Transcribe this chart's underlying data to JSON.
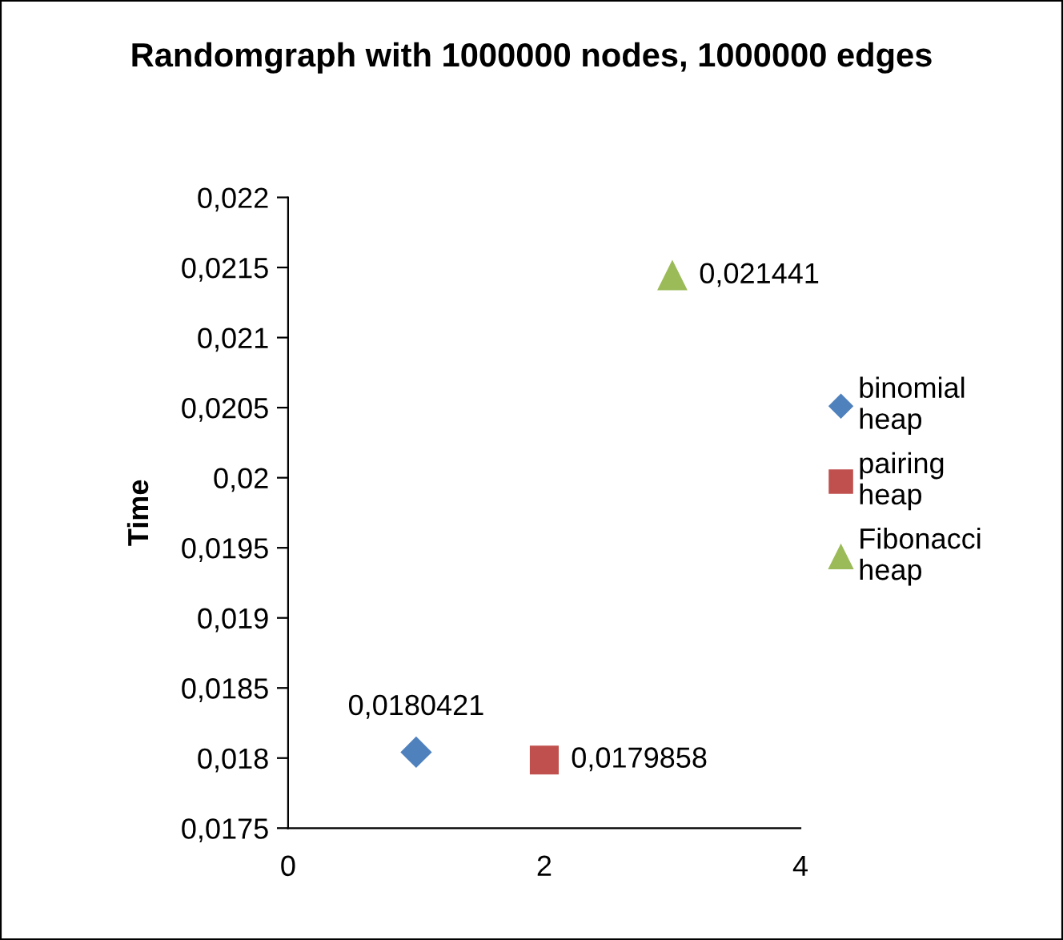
{
  "chart_data": {
    "type": "scatter",
    "title": "Randomgraph with 1000000 nodes, 1000000 edges",
    "ylabel": "Time",
    "series": [
      {
        "name": "binomial heap",
        "color": "#4f81bd",
        "marker": "diamond",
        "x": [
          1
        ],
        "values": [
          0.0180421
        ],
        "value_labels": [
          "0,0180421"
        ]
      },
      {
        "name": "pairing heap",
        "color": "#c0504d",
        "marker": "square",
        "x": [
          2
        ],
        "values": [
          0.0179858
        ],
        "value_labels": [
          "0,0179858"
        ]
      },
      {
        "name": "Fibonacci heap",
        "color": "#9bbb59",
        "marker": "triangle",
        "x": [
          3
        ],
        "values": [
          0.021441
        ],
        "value_labels": [
          "0,021441"
        ]
      }
    ],
    "xlim": [
      0,
      4
    ],
    "xticks": [
      0,
      2,
      4
    ],
    "ylim": [
      0.0175,
      0.022
    ],
    "yticks": [
      {
        "value": 0.0175,
        "label": "0,0175"
      },
      {
        "value": 0.018,
        "label": "0,018"
      },
      {
        "value": 0.0185,
        "label": "0,0185"
      },
      {
        "value": 0.019,
        "label": "0,019"
      },
      {
        "value": 0.0195,
        "label": "0,0195"
      },
      {
        "value": 0.02,
        "label": "0,02"
      },
      {
        "value": 0.0205,
        "label": "0,0205"
      },
      {
        "value": 0.021,
        "label": "0,021"
      },
      {
        "value": 0.0215,
        "label": "0,0215"
      },
      {
        "value": 0.022,
        "label": "0,022"
      }
    ],
    "grid": false,
    "legend": "right"
  }
}
